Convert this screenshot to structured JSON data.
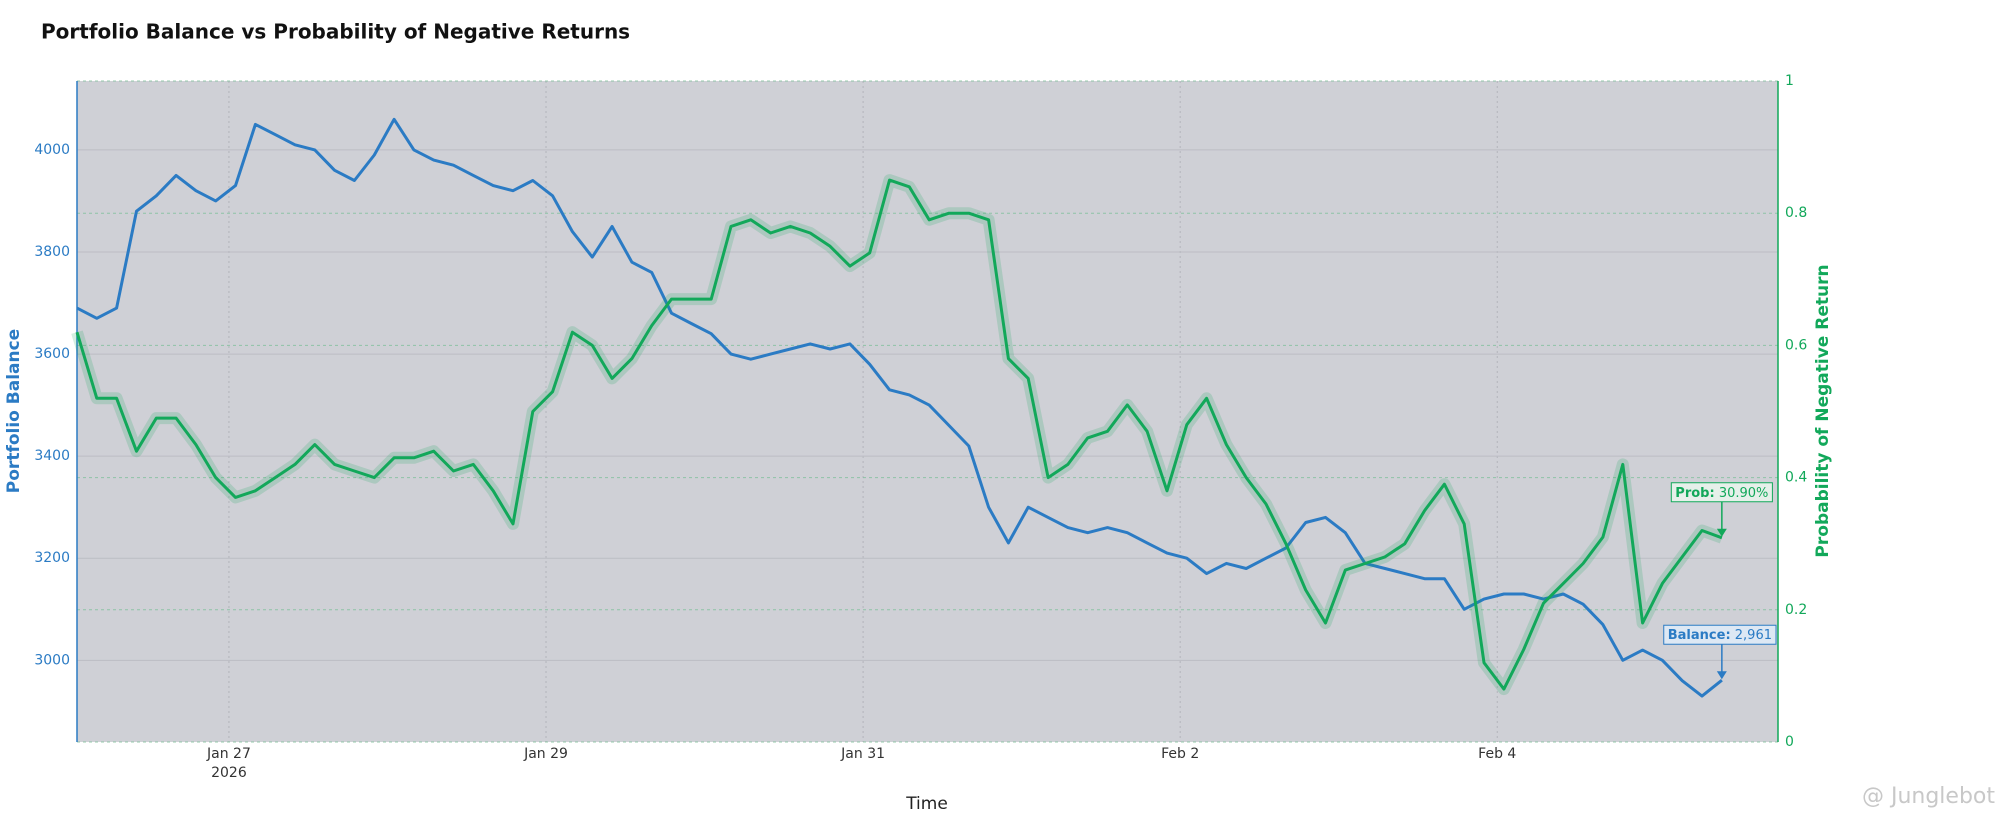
{
  "chart_data": {
    "type": "line",
    "title": "Portfolio Balance vs Probability of Negative Returns",
    "x_label": "Time",
    "y_label": "Portfolio Balance",
    "y2_label": "Probability of Negative Return",
    "watermark": "@ Junglebot",
    "x": [
      "2026-01-26T01:00",
      "2026-01-26T04:00",
      "2026-01-26T07:00",
      "2026-01-26T10:00",
      "2026-01-26T13:00",
      "2026-01-26T16:00",
      "2026-01-26T19:00",
      "2026-01-26T22:00",
      "2026-01-27T01:00",
      "2026-01-27T04:00",
      "2026-01-27T07:00",
      "2026-01-27T10:00",
      "2026-01-27T13:00",
      "2026-01-27T16:00",
      "2026-01-27T19:00",
      "2026-01-27T22:00",
      "2026-01-28T01:00",
      "2026-01-28T04:00",
      "2026-01-28T07:00",
      "2026-01-28T10:00",
      "2026-01-28T13:00",
      "2026-01-28T16:00",
      "2026-01-28T19:00",
      "2026-01-28T22:00",
      "2026-01-29T01:00",
      "2026-01-29T04:00",
      "2026-01-29T07:00",
      "2026-01-29T10:00",
      "2026-01-29T13:00",
      "2026-01-29T16:00",
      "2026-01-29T19:00",
      "2026-01-29T22:00",
      "2026-01-30T01:00",
      "2026-01-30T04:00",
      "2026-01-30T07:00",
      "2026-01-30T10:00",
      "2026-01-30T13:00",
      "2026-01-30T16:00",
      "2026-01-30T19:00",
      "2026-01-30T22:00",
      "2026-01-31T01:00",
      "2026-01-31T04:00",
      "2026-01-31T07:00",
      "2026-01-31T10:00",
      "2026-01-31T13:00",
      "2026-01-31T16:00",
      "2026-01-31T19:00",
      "2026-01-31T22:00",
      "2026-02-01T01:00",
      "2026-02-01T04:00",
      "2026-02-01T07:00",
      "2026-02-01T10:00",
      "2026-02-01T13:00",
      "2026-02-01T16:00",
      "2026-02-01T19:00",
      "2026-02-01T22:00",
      "2026-02-02T01:00",
      "2026-02-02T04:00",
      "2026-02-02T07:00",
      "2026-02-02T10:00",
      "2026-02-02T13:00",
      "2026-02-02T16:00",
      "2026-02-02T19:00",
      "2026-02-02T22:00",
      "2026-02-03T01:00",
      "2026-02-03T04:00",
      "2026-02-03T07:00",
      "2026-02-03T10:00",
      "2026-02-03T13:00",
      "2026-02-03T16:00",
      "2026-02-03T19:00",
      "2026-02-03T22:00",
      "2026-02-04T01:00",
      "2026-02-04T04:00",
      "2026-02-04T07:00",
      "2026-02-04T10:00",
      "2026-02-04T13:00",
      "2026-02-04T16:00",
      "2026-02-04T19:00",
      "2026-02-04T22:00",
      "2026-02-05T01:00",
      "2026-02-05T04:00",
      "2026-02-05T07:00",
      "2026-02-05T10:00"
    ],
    "series": [
      {
        "name": "Portfolio Balance",
        "color": "#2b7bc4",
        "axis": "y",
        "values": [
          3690,
          3670,
          3690,
          3880,
          3910,
          3950,
          3920,
          3900,
          3930,
          4050,
          4030,
          4010,
          4000,
          3960,
          3940,
          3990,
          4060,
          4000,
          3980,
          3970,
          3950,
          3930,
          3920,
          3940,
          3910,
          3840,
          3790,
          3850,
          3780,
          3760,
          3680,
          3660,
          3640,
          3600,
          3590,
          3600,
          3610,
          3620,
          3610,
          3620,
          3580,
          3530,
          3520,
          3500,
          3460,
          3420,
          3300,
          3230,
          3300,
          3280,
          3260,
          3250,
          3260,
          3250,
          3230,
          3210,
          3200,
          3170,
          3190,
          3180,
          3200,
          3220,
          3270,
          3280,
          3250,
          3190,
          3180,
          3170,
          3160,
          3160,
          3100,
          3120,
          3130,
          3130,
          3120,
          3130,
          3110,
          3070,
          3000,
          3020,
          3000,
          2960,
          2930,
          2961
        ]
      },
      {
        "name": "Probability of Negative Return",
        "color": "#12a85a",
        "axis": "y2",
        "values": [
          0.62,
          0.52,
          0.52,
          0.44,
          0.49,
          0.49,
          0.45,
          0.4,
          0.37,
          0.38,
          0.4,
          0.42,
          0.45,
          0.42,
          0.41,
          0.4,
          0.43,
          0.43,
          0.44,
          0.41,
          0.42,
          0.38,
          0.33,
          0.5,
          0.53,
          0.62,
          0.6,
          0.55,
          0.58,
          0.63,
          0.67,
          0.67,
          0.67,
          0.78,
          0.79,
          0.77,
          0.78,
          0.77,
          0.75,
          0.72,
          0.74,
          0.85,
          0.84,
          0.79,
          0.8,
          0.8,
          0.79,
          0.58,
          0.55,
          0.4,
          0.42,
          0.46,
          0.47,
          0.51,
          0.47,
          0.38,
          0.48,
          0.52,
          0.45,
          0.4,
          0.36,
          0.3,
          0.23,
          0.18,
          0.26,
          0.27,
          0.28,
          0.3,
          0.35,
          0.39,
          0.33,
          0.12,
          0.08,
          0.14,
          0.21,
          0.24,
          0.27,
          0.31,
          0.42,
          0.18,
          0.24,
          0.28,
          0.32,
          0.309
        ]
      }
    ],
    "xlim": [
      "2026-01-26T01:00",
      "2026-02-05T18:30"
    ],
    "xticks": [
      {
        "value": "2026-01-27T00:00",
        "label": "Jan 27"
      },
      {
        "value": "2026-01-29T00:00",
        "label": "Jan 29"
      },
      {
        "value": "2026-01-31T00:00",
        "label": "Jan 31"
      },
      {
        "value": "2026-02-02T00:00",
        "label": "Feb 2"
      },
      {
        "value": "2026-02-04T00:00",
        "label": "Feb 4"
      }
    ],
    "x_tick_year": "2026",
    "ylim": [
      2840,
      4135
    ],
    "yticks": [
      3000,
      3200,
      3400,
      3600,
      3800,
      4000
    ],
    "y2lim": [
      0,
      1
    ],
    "y2ticks": [
      0,
      0.2,
      0.4,
      0.6,
      0.8,
      1
    ],
    "grid": true,
    "annotations": [
      {
        "series": 1,
        "label": "Prob:",
        "text": "30.90%",
        "value": 0.309
      },
      {
        "series": 0,
        "label": "Balance:",
        "text": "2,961",
        "value": 2961
      }
    ]
  }
}
